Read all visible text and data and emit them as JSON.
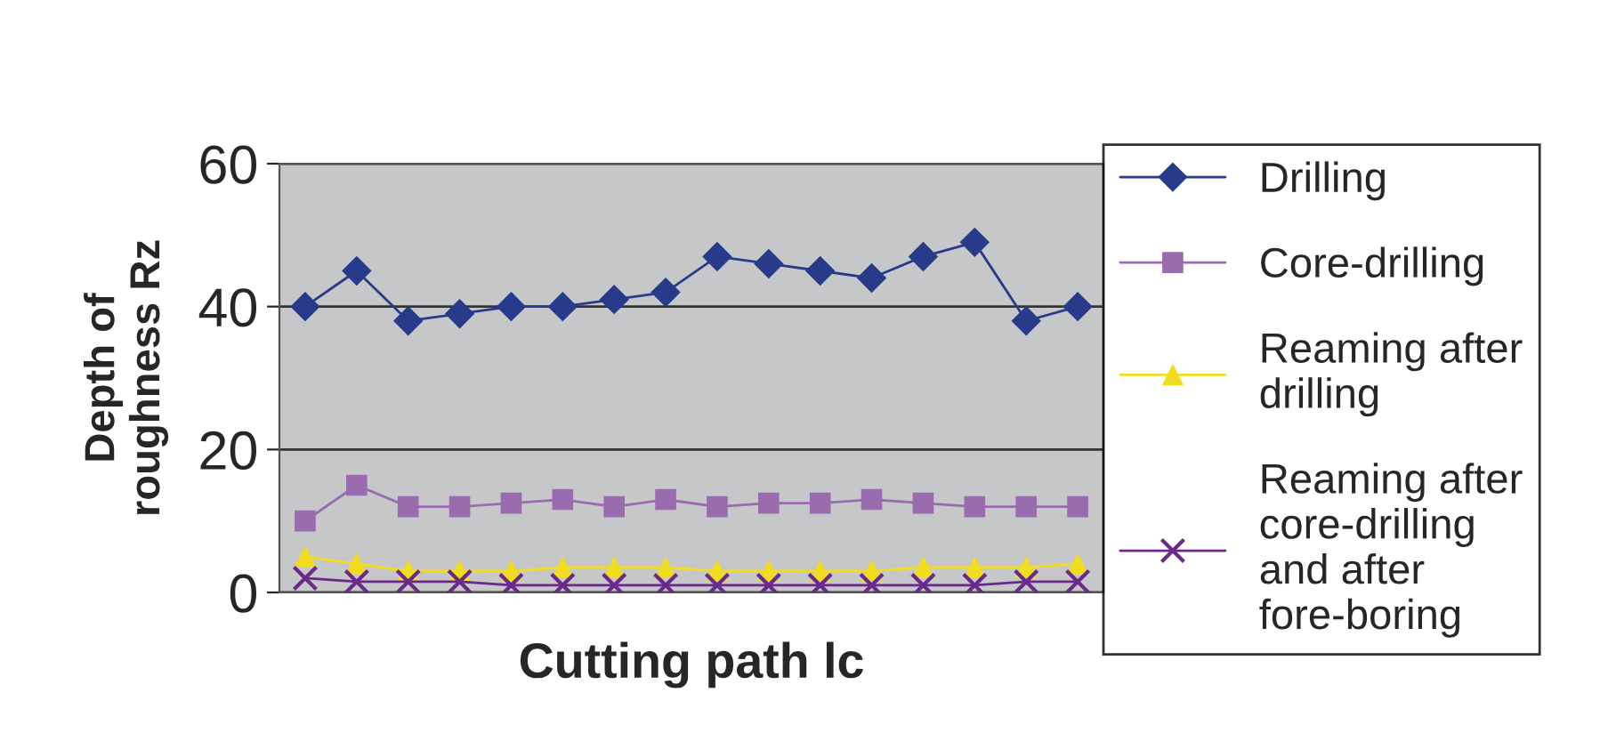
{
  "chart_data": {
    "type": "line",
    "xlabel": "Cutting path lc",
    "ylabel": "Depth of\nroughness Rz",
    "categories": [
      null,
      null,
      null,
      null,
      null,
      null,
      null,
      null,
      null,
      null,
      null,
      null,
      null,
      null,
      null,
      null
    ],
    "series": [
      {
        "name": "Drilling",
        "color": "#283a8a",
        "marker": "diamond",
        "values": [
          40,
          45,
          38,
          39,
          40,
          40,
          41,
          42,
          47,
          46,
          45,
          44,
          47,
          49,
          38,
          40
        ]
      },
      {
        "name": "Core-drilling",
        "color": "#9b6bb0",
        "marker": "square",
        "values": [
          10,
          15,
          12,
          12,
          12.5,
          13,
          12,
          13,
          12,
          12.5,
          12.5,
          13,
          12.5,
          12,
          12,
          12
        ]
      },
      {
        "name": "Reaming after\ndrilling",
        "color": "#f2dc1e",
        "marker": "triangle",
        "values": [
          5,
          4,
          3,
          3,
          3,
          3.5,
          3.5,
          3.5,
          3,
          3,
          3,
          3,
          3.5,
          3.5,
          3.5,
          4
        ]
      },
      {
        "name": "Reaming after\ncore-drilling\nand after\nfore-boring",
        "color": "#6a2a8a",
        "marker": "cross",
        "values": [
          2,
          1.5,
          1.5,
          1.5,
          1,
          1,
          1,
          1,
          1,
          1,
          1,
          1,
          1,
          1,
          1.5,
          1.5
        ]
      }
    ],
    "ylim": [
      0,
      60
    ],
    "yticks": [
      0,
      20,
      40,
      60
    ],
    "grid": "y",
    "legend": "right",
    "tick_labels": "y"
  }
}
